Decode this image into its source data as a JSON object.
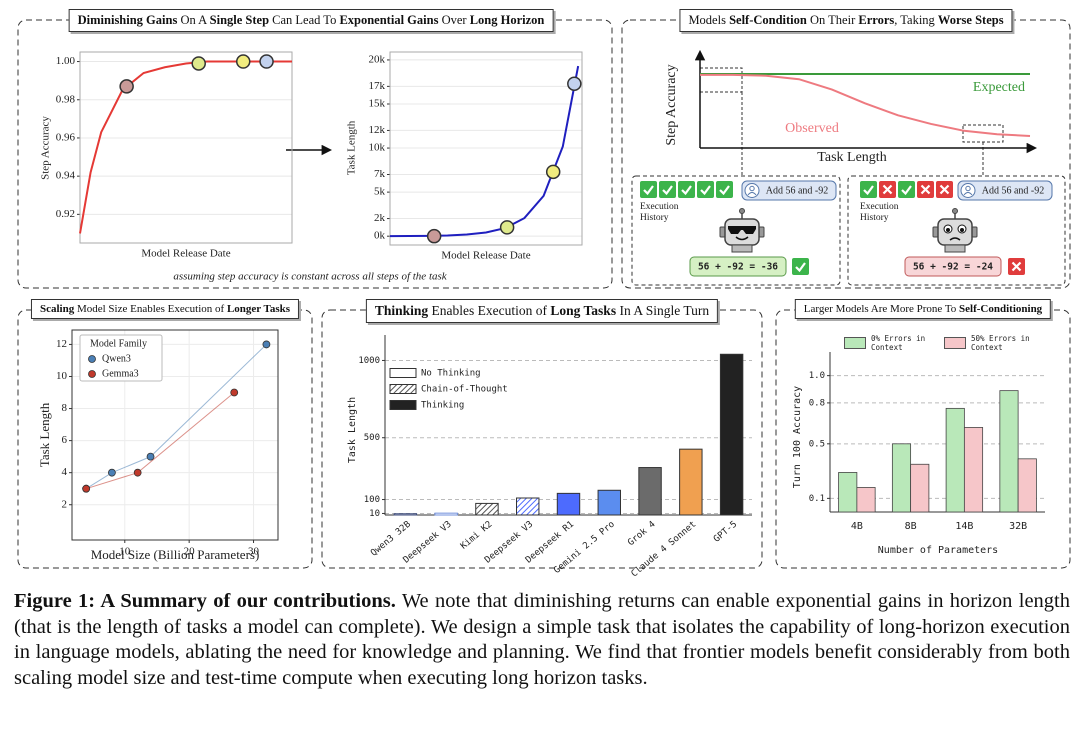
{
  "panels": [
    {
      "title": [
        {
          "text": "Diminishing Gains",
          "bold": true
        },
        {
          "text": " On A ",
          "bold": false
        },
        {
          "text": "Single Step",
          "bold": true
        },
        {
          "text": " Can Lead To ",
          "bold": false
        },
        {
          "text": "Exponential Gains",
          "bold": true
        },
        {
          "text": " Over ",
          "bold": false
        },
        {
          "text": "Long Horizon",
          "bold": true
        }
      ],
      "note": "assuming step accuracy is constant across all steps of the task"
    },
    {
      "title": [
        {
          "text": "Models ",
          "bold": false
        },
        {
          "text": "Self-Condition",
          "bold": true
        },
        {
          "text": " On Their ",
          "bold": false
        },
        {
          "text": "Errors",
          "bold": true
        },
        {
          "text": ", Taking ",
          "bold": false
        },
        {
          "text": "Worse Steps",
          "bold": true
        }
      ]
    },
    {
      "title": [
        {
          "text": "Scaling",
          "bold": true
        },
        {
          "text": " Model Size Enables Execution of ",
          "bold": false
        },
        {
          "text": "Longer Tasks",
          "bold": true
        }
      ]
    },
    {
      "title": [
        {
          "text": "Thinking",
          "bold": true
        },
        {
          "text": " Enables Execution of ",
          "bold": false
        },
        {
          "text": "Long Tasks",
          "bold": true
        },
        {
          "text": " In A Single Turn",
          "bold": false
        }
      ]
    },
    {
      "title": [
        {
          "text": "Larger Models Are More Prone To ",
          "bold": false
        },
        {
          "text": "Self-Conditioning",
          "bold": true
        }
      ]
    }
  ],
  "chart_data": [
    {
      "type": "line",
      "xlabel": "Model Release Date",
      "ylabel": "Step Accuracy",
      "xlim": [
        0,
        10
      ],
      "ylim": [
        0.905,
        1.005
      ],
      "yticks": [
        0.92,
        0.94,
        0.96,
        0.98,
        {
          "value": 1,
          "label": "1.00"
        }
      ],
      "grid": true,
      "series": [
        {
          "color": "#e53935",
          "x": [
            0,
            0.5,
            1,
            2,
            3,
            4,
            5,
            6,
            7,
            8,
            9,
            10
          ],
          "values": [
            0.91,
            0.942,
            0.963,
            0.985,
            0.994,
            0.997,
            0.999,
            1,
            1,
            1,
            1,
            1
          ]
        }
      ],
      "points": {
        "x": [
          2.2,
          5.6,
          7.7,
          8.8
        ],
        "values": [
          0.987,
          0.999,
          1,
          1
        ],
        "colors": [
          "#c99a98",
          "#dfea8c",
          "#f1ec7e",
          "#c3d2ee"
        ]
      }
    },
    {
      "type": "line",
      "xlabel": "Model Release Date",
      "ylabel": "Task Length",
      "xlim": [
        0,
        10
      ],
      "ylim": [
        -1000,
        20900
      ],
      "yticks": [
        {
          "value": 0,
          "label": "0k"
        },
        {
          "value": 2000,
          "label": "2k"
        },
        {
          "value": 5000,
          "label": "5k"
        },
        {
          "value": 7000,
          "label": "7k"
        },
        {
          "value": 10000,
          "label": "10k"
        },
        {
          "value": 12000,
          "label": "12k"
        },
        {
          "value": 15000,
          "label": "15k"
        },
        {
          "value": 17000,
          "label": "17k"
        },
        {
          "value": 20000,
          "label": "20k"
        }
      ],
      "grid": true,
      "series": [
        {
          "color": "#1f1fbf",
          "x": [
            0,
            1,
            2,
            3,
            4,
            5,
            6,
            7,
            8,
            9,
            9.8
          ],
          "values": [
            8,
            17,
            38,
            84,
            186,
            415,
            923,
            2054,
            4572,
            10176,
            19300
          ]
        }
      ],
      "points": {
        "x": [
          2.3,
          6.1,
          8.5,
          9.6
        ],
        "values": [
          0,
          1000,
          7300,
          17300
        ],
        "colors": [
          "#c99a98",
          "#dfea8c",
          "#f1ec7e",
          "#c3d2ee"
        ]
      }
    },
    {
      "type": "line",
      "xlabel": "Task Length",
      "ylabel": "Step Accuracy",
      "xlim": [
        0,
        10
      ],
      "ylim": [
        0,
        1
      ],
      "series": [
        {
          "name": "Expected",
          "color": "#3a9a3a",
          "x": [
            0,
            10
          ],
          "values": [
            0.86,
            0.86
          ]
        },
        {
          "name": "Observed",
          "color": "#ee7a80",
          "x": [
            0,
            1,
            2,
            3,
            4,
            5,
            6,
            7,
            8,
            9,
            10
          ],
          "values": [
            0.85,
            0.85,
            0.84,
            0.8,
            0.68,
            0.52,
            0.38,
            0.28,
            0.2,
            0.16,
            0.14
          ]
        }
      ]
    },
    {
      "type": "scatter",
      "xlabel": "Model Size (Billion Parameters)",
      "ylabel": "Task Length",
      "legend_title": "Model Family",
      "xlim": [
        1.8,
        33.8
      ],
      "ylim": [
        -0.2,
        12.9
      ],
      "xticks": [
        10,
        20,
        30
      ],
      "yticks": [
        2,
        4,
        6,
        8,
        10,
        12
      ],
      "grid": true,
      "series": [
        {
          "name": "Qwen3",
          "color": "#4a7fb5",
          "x": [
            4,
            8,
            14,
            32
          ],
          "values": [
            3,
            4,
            5,
            12
          ]
        },
        {
          "name": "Gemma3",
          "color": "#c0392b",
          "x": [
            4,
            12,
            27
          ],
          "values": [
            3,
            4,
            9
          ]
        }
      ]
    },
    {
      "type": "bar",
      "ylabel": "Task Length",
      "ylim": [
        0,
        1100
      ],
      "yticks": [
        10,
        100,
        500,
        1000
      ],
      "grid": true,
      "grid_style": "dashed",
      "categories": [
        "Qwen3 32B",
        "Deepseek V3",
        "Kimi K2",
        "Deepseek V3",
        "Deepseek R1",
        "Gemini 2.5 Pro",
        "Grok 4",
        "Claude 4 Sonnet",
        "GPT-5"
      ],
      "values": [
        8,
        12,
        75,
        110,
        140,
        160,
        307,
        426,
        1040
      ],
      "colors": [
        "#3b4a7a",
        "#6f8fdc",
        "#555555",
        "#4d6bfe",
        "#4d6bfe",
        "#5b8def",
        "#6b6b6b",
        "#f0a050",
        "#222222"
      ],
      "fill_style": [
        "outline",
        "outline",
        "hatch",
        "hatch",
        "solid",
        "solid",
        "solid",
        "solid",
        "solid"
      ],
      "legend": [
        {
          "name": "No Thinking",
          "fill_style": "outline",
          "color": "#333333"
        },
        {
          "name": "Chain-of-Thought",
          "fill_style": "hatch",
          "color": "#555555"
        },
        {
          "name": "Thinking",
          "fill_style": "solid",
          "color": "#222222"
        }
      ]
    },
    {
      "type": "bar",
      "xlabel": "Number of Parameters",
      "ylabel": "Turn 100 Accuracy",
      "ylim": [
        0,
        1.1
      ],
      "yticks": [
        0.1,
        0.5,
        0.8,
        {
          "value": 1,
          "label": "1.0"
        }
      ],
      "grid": true,
      "grid_style": "dashed",
      "categories": [
        "4B",
        "8B",
        "14B",
        "32B"
      ],
      "series": [
        {
          "name": "0% Errors in Context",
          "color": "#b9e8b9",
          "values": [
            0.29,
            0.5,
            0.76,
            0.89
          ]
        },
        {
          "name": "50% Errors in Context",
          "color": "#f6c6c9",
          "values": [
            0.18,
            0.35,
            0.62,
            0.39
          ]
        }
      ]
    }
  ],
  "self_condition": {
    "history_label": "Execution History",
    "examples": [
      {
        "history": [
          true,
          true,
          true,
          true,
          true
        ],
        "prompt": "Add 56 and -92",
        "answer": "56 + -92 = -36",
        "correct": true
      },
      {
        "history": [
          true,
          false,
          true,
          false,
          false
        ],
        "prompt": "Add 56 and -92",
        "answer": "56 + -92 = -24",
        "correct": false
      }
    ]
  },
  "caption": {
    "label": "Figure 1: A Summary of our contributions.",
    "text": "We note that diminishing returns can enable exponential gains in horizon length (that is the length of tasks a model can complete). We design a simple task that isolates the capability of long-horizon execution in language models, ablating the need for knowledge and planning. We find that frontier models benefit considerably from both scaling model size and test-time compute when executing long horizon tasks."
  }
}
